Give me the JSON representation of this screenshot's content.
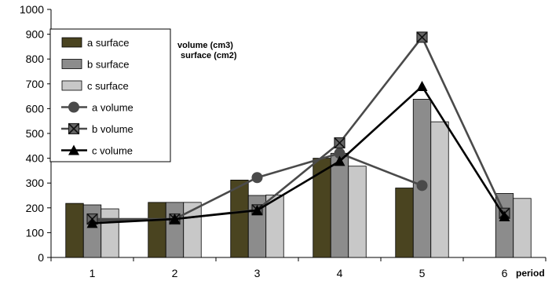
{
  "chart_data": {
    "type": "bar",
    "categories": [
      "1",
      "2",
      "3",
      "4",
      "5",
      "6"
    ],
    "xlabel": "period",
    "ylabel": "",
    "ylim": [
      0,
      1000
    ],
    "yticks": [
      "0",
      "100",
      "200",
      "300",
      "400",
      "500",
      "600",
      "700",
      "800",
      "900",
      "1000"
    ],
    "annotations": [
      "volume (cm3)",
      "surface (cm2)"
    ],
    "bar_series": [
      {
        "name": "a surface",
        "color": "#4a4420",
        "values": [
          218,
          222,
          312,
          400,
          280,
          null
        ]
      },
      {
        "name": "b surface",
        "color": "#8c8c8c",
        "values": [
          212,
          222,
          250,
          420,
          638,
          258
        ]
      },
      {
        "name": "c surface",
        "color": "#c8c8c8",
        "values": [
          196,
          222,
          252,
          368,
          547,
          238
        ]
      }
    ],
    "line_series": [
      {
        "name": "a volume",
        "color": "#4a4a4a",
        "marker": "circle",
        "values": [
          148,
          155,
          322,
          420,
          290,
          null
        ]
      },
      {
        "name": "b volume",
        "color": "#4a4a4a",
        "marker": "square-x",
        "values": [
          155,
          155,
          192,
          462,
          888,
          178
        ]
      },
      {
        "name": "c volume",
        "color": "#000000",
        "marker": "triangle",
        "values": [
          138,
          155,
          190,
          388,
          690,
          165
        ]
      }
    ],
    "grid": false,
    "legend_position": "top-left"
  }
}
